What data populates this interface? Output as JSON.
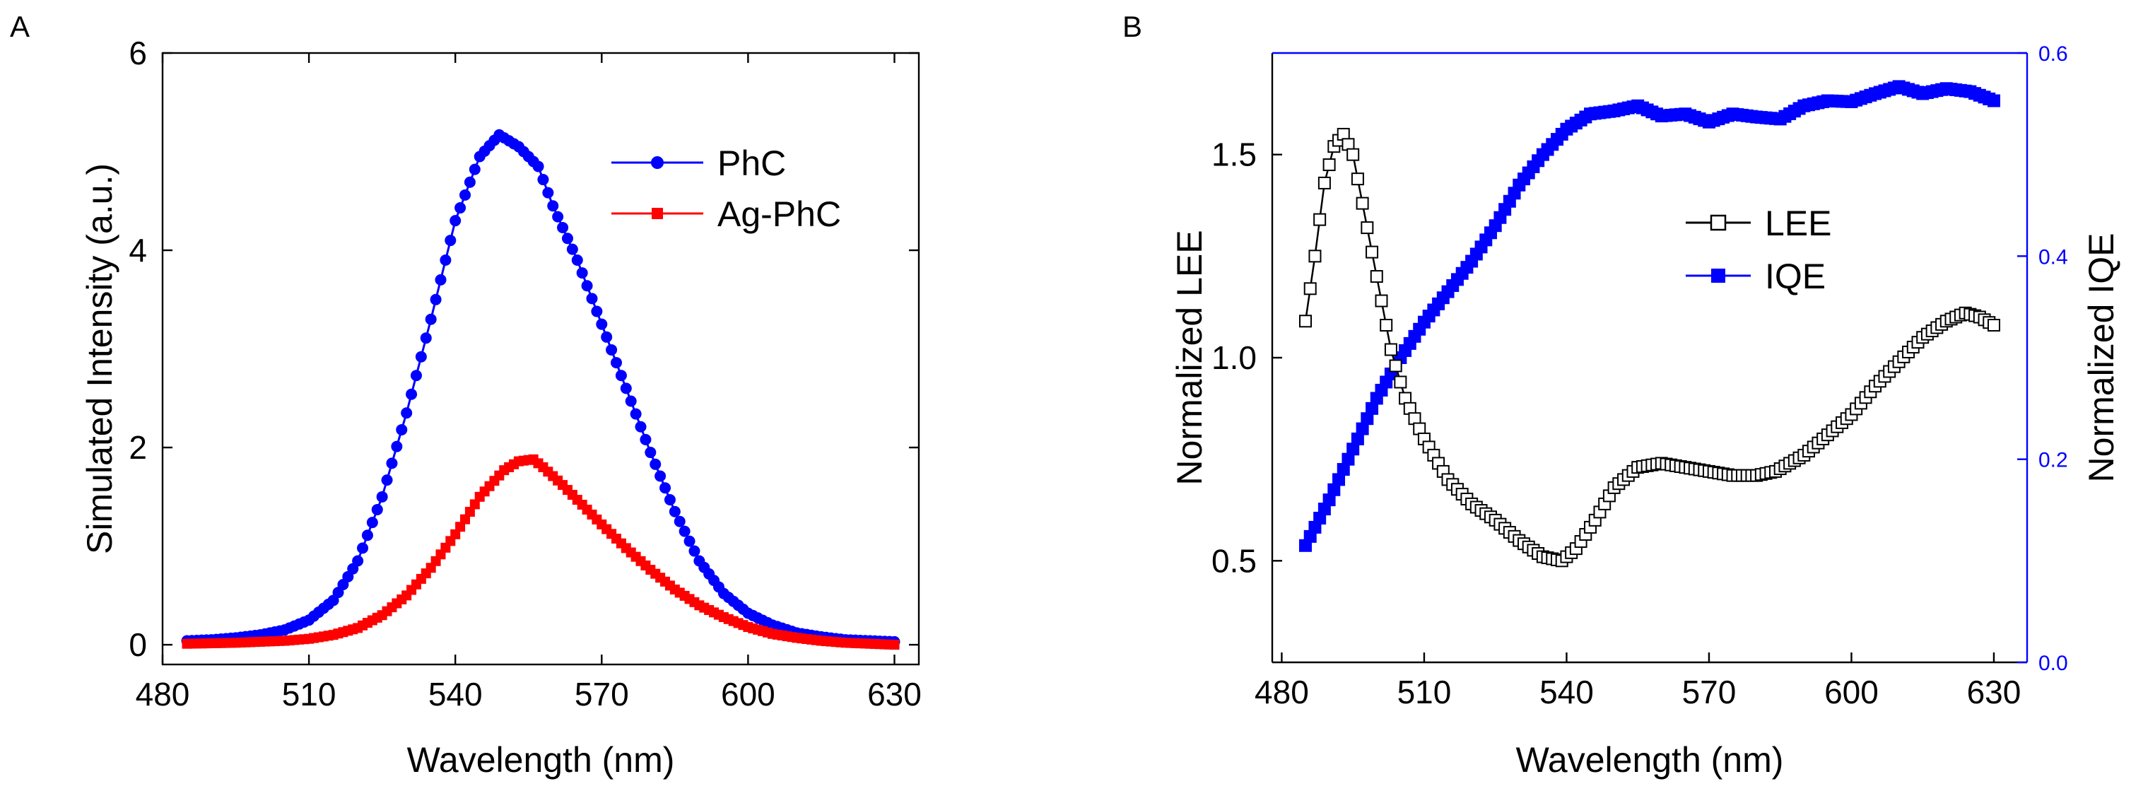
{
  "chart_data": [
    {
      "panel": "A",
      "type": "line",
      "xlabel": "Wavelength (nm)",
      "ylabel": "Simulated Intensity (a.u.)",
      "xlim": [
        480,
        635
      ],
      "ylim": [
        -0.2,
        6
      ],
      "xticks": [
        480,
        510,
        540,
        570,
        600,
        630
      ],
      "yticks": [
        0,
        2,
        4,
        6
      ],
      "legend_position": "top-right",
      "series": [
        {
          "name": "PhC",
          "color": "#0000ff",
          "marker": "circle",
          "x": [
            485,
            490,
            495,
            500,
            505,
            510,
            515,
            520,
            525,
            530,
            535,
            540,
            545,
            549,
            553,
            557,
            560,
            565,
            570,
            575,
            580,
            585,
            590,
            595,
            600,
            605,
            610,
            615,
            620,
            625,
            630
          ],
          "y": [
            0.04,
            0.05,
            0.07,
            0.1,
            0.15,
            0.25,
            0.45,
            0.85,
            1.5,
            2.35,
            3.3,
            4.3,
            4.95,
            5.17,
            5.05,
            4.85,
            4.45,
            3.9,
            3.25,
            2.6,
            1.95,
            1.35,
            0.85,
            0.52,
            0.32,
            0.2,
            0.12,
            0.08,
            0.05,
            0.04,
            0.03
          ]
        },
        {
          "name": "Ag-PhC",
          "color": "#ff0000",
          "marker": "square",
          "x": [
            485,
            490,
            495,
            500,
            505,
            510,
            515,
            520,
            525,
            530,
            535,
            540,
            545,
            550,
            553,
            556,
            558,
            562,
            566,
            570,
            575,
            580,
            585,
            590,
            595,
            600,
            605,
            610,
            615,
            620,
            625,
            630
          ],
          "y": [
            0.01,
            0.015,
            0.02,
            0.03,
            0.04,
            0.06,
            0.1,
            0.17,
            0.3,
            0.5,
            0.78,
            1.12,
            1.5,
            1.77,
            1.86,
            1.88,
            1.8,
            1.62,
            1.42,
            1.22,
            0.98,
            0.76,
            0.56,
            0.4,
            0.28,
            0.18,
            0.11,
            0.07,
            0.04,
            0.02,
            0.01,
            0.0
          ]
        }
      ]
    },
    {
      "panel": "B",
      "type": "line",
      "xlabel": "Wavelength (nm)",
      "ylabel": "Normalized LEE",
      "ylabel_right": "Normalized IQE",
      "xlim": [
        478,
        637
      ],
      "ylim": [
        0.25,
        1.75
      ],
      "ylim_right": [
        0,
        0.6
      ],
      "xticks": [
        480,
        510,
        540,
        570,
        600,
        630
      ],
      "yticks": [
        "0.5",
        "1.0",
        "1.5"
      ],
      "yticks_right": [
        "0.0",
        "0.2",
        "0.4",
        "0.6"
      ],
      "legend_position": "top-right",
      "series": [
        {
          "name": "LEE",
          "color": "#000000",
          "marker": "open-square",
          "axis": "left",
          "x": [
            485,
            487,
            489,
            491,
            493,
            495,
            497,
            500,
            503,
            506,
            510,
            515,
            520,
            525,
            530,
            535,
            539,
            542,
            546,
            550,
            555,
            560,
            565,
            570,
            575,
            580,
            584,
            590,
            595,
            600,
            605,
            610,
            615,
            620,
            624,
            627,
            630
          ],
          "y": [
            1.09,
            1.25,
            1.43,
            1.52,
            1.55,
            1.5,
            1.38,
            1.2,
            1.02,
            0.9,
            0.8,
            0.7,
            0.64,
            0.6,
            0.55,
            0.51,
            0.5,
            0.53,
            0.6,
            0.68,
            0.73,
            0.74,
            0.73,
            0.72,
            0.71,
            0.71,
            0.72,
            0.76,
            0.81,
            0.86,
            0.93,
            0.99,
            1.05,
            1.09,
            1.11,
            1.1,
            1.08
          ]
        },
        {
          "name": "IQE",
          "color": "#0000ff",
          "marker": "filled-square",
          "axis": "right",
          "x": [
            485,
            490,
            495,
            500,
            505,
            510,
            515,
            520,
            525,
            530,
            535,
            540,
            545,
            550,
            555,
            560,
            565,
            570,
            575,
            580,
            585,
            590,
            595,
            600,
            605,
            610,
            615,
            620,
            625,
            630
          ],
          "y": [
            0.115,
            0.16,
            0.21,
            0.26,
            0.3,
            0.335,
            0.365,
            0.395,
            0.43,
            0.47,
            0.5,
            0.525,
            0.54,
            0.543,
            0.548,
            0.538,
            0.54,
            0.532,
            0.54,
            0.537,
            0.535,
            0.548,
            0.553,
            0.552,
            0.56,
            0.567,
            0.56,
            0.565,
            0.562,
            0.553
          ]
        }
      ]
    }
  ]
}
